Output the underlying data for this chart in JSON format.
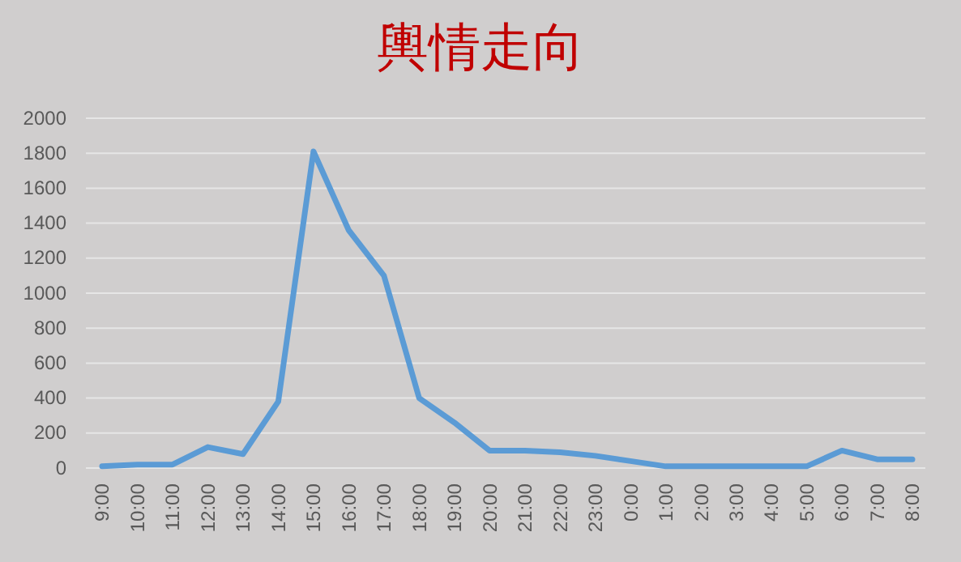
{
  "chart_data": {
    "type": "line",
    "title": "輿情走向",
    "categories": [
      "9:00",
      "10:00",
      "11:00",
      "12:00",
      "13:00",
      "14:00",
      "15:00",
      "16:00",
      "17:00",
      "18:00",
      "19:00",
      "20:00",
      "21:00",
      "22:00",
      "23:00",
      "0:00",
      "1:00",
      "2:00",
      "3:00",
      "4:00",
      "5:00",
      "6:00",
      "7:00",
      "8:00"
    ],
    "series": [
      {
        "color": "#5b9bd5",
        "values": [
          10,
          20,
          20,
          120,
          80,
          380,
          1810,
          1360,
          1100,
          400,
          260,
          100,
          100,
          90,
          70,
          40,
          10,
          10,
          10,
          10,
          10,
          100,
          50,
          50
        ]
      }
    ],
    "ylim": [
      0,
      2000
    ],
    "yticks": [
      0,
      200,
      400,
      600,
      800,
      1000,
      1200,
      1400,
      1600,
      1800,
      2000
    ],
    "grid": "y",
    "marker": "none",
    "line_style": "solid"
  }
}
